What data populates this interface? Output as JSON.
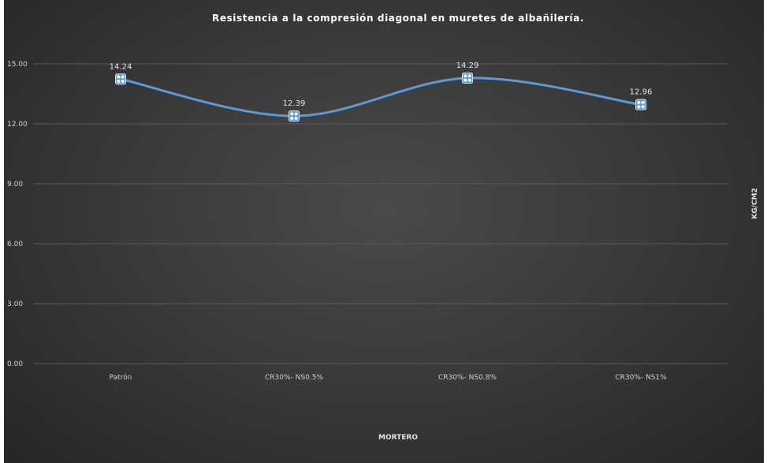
{
  "chart_data": {
    "type": "line",
    "title": "Resistencia a la  compresión diagonal en muretes de albañilería.",
    "xlabel": "MORTERO",
    "ylabel": "KG/CM2",
    "categories": [
      "Patrón",
      "CR30%- NS0.5%",
      "CR30%- NS0.8%",
      "CR30%- NS1%"
    ],
    "series": [
      {
        "values": [
          14.24,
          12.39,
          14.29,
          12.96
        ]
      }
    ],
    "data_labels": [
      "14.24",
      "12.39",
      "14.29",
      "12.96"
    ],
    "ylim": [
      0,
      15
    ],
    "y_ticks": [
      0,
      3,
      6,
      9,
      12,
      15
    ],
    "y_tick_labels": [
      "0.00",
      "3.00",
      "6.00",
      "9.00",
      "12.00",
      "15.00"
    ],
    "grid": true,
    "line_smoothed": true,
    "colors": {
      "line": "#5b9bd5",
      "marker": "#5b9bd5",
      "background": "#3b3b3b",
      "gridline": "#5a5a5a"
    }
  }
}
